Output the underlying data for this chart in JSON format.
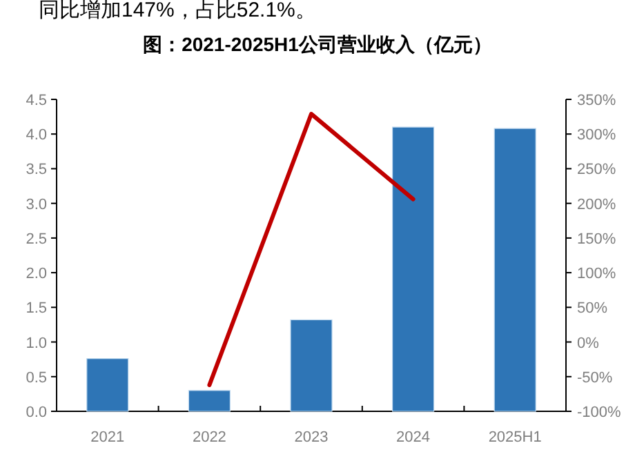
{
  "chart_data": {
    "type": "bar",
    "title": "图：2021-2025H1公司营业收入（亿元）",
    "annotations": [
      "同比增加147%，占比52.1%。"
    ],
    "categories": [
      "2021",
      "2022",
      "2023",
      "2024",
      "2025H1"
    ],
    "series": [
      {
        "color": "#2e75b6",
        "values": [
          0.76,
          0.3,
          1.32,
          4.1,
          4.08
        ]
      },
      {
        "type": "line",
        "axis": "y2",
        "color": "#c00000",
        "values": [
          null,
          -62,
          329,
          206,
          null
        ]
      }
    ],
    "ylim": [
      0,
      4.5
    ],
    "yticks": [
      {
        "value": 0,
        "label": "0.0"
      },
      {
        "value": 0.5,
        "label": "0.5"
      },
      {
        "value": 1,
        "label": "1.0"
      },
      {
        "value": 1.5,
        "label": "1.5"
      },
      {
        "value": 2,
        "label": "2.0"
      },
      {
        "value": 2.5,
        "label": "2.5"
      },
      {
        "value": 3,
        "label": "3.0"
      },
      {
        "value": 3.5,
        "label": "3.5"
      },
      {
        "value": 4,
        "label": "4.0"
      },
      {
        "value": 4.5,
        "label": "4.5"
      }
    ],
    "y2lim": [
      -100,
      350
    ],
    "y2ticks": [
      {
        "value": -100,
        "label": "-100%"
      },
      {
        "value": -50,
        "label": "-50%"
      },
      {
        "value": 0,
        "label": "0%"
      },
      {
        "value": 50,
        "label": "50%"
      },
      {
        "value": 100,
        "label": "100%"
      },
      {
        "value": 150,
        "label": "150%"
      },
      {
        "value": 200,
        "label": "200%"
      },
      {
        "value": 250,
        "label": "250%"
      },
      {
        "value": 300,
        "label": "300%"
      },
      {
        "value": 350,
        "label": "350%"
      }
    ],
    "grid": false
  }
}
